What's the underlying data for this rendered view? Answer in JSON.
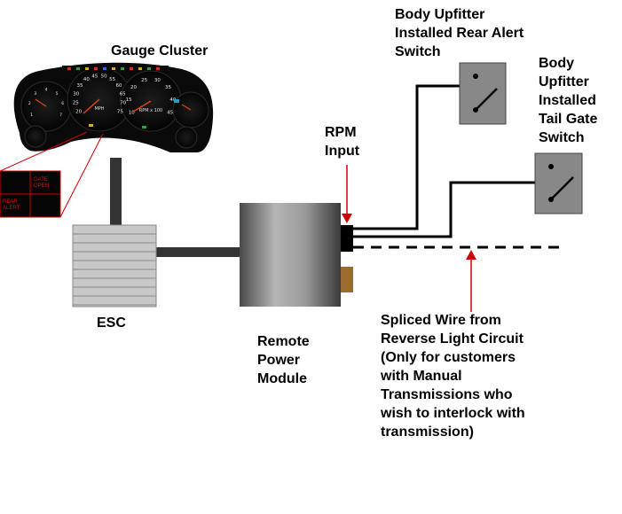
{
  "labels": {
    "gauge_cluster": "Gauge Cluster",
    "rear_alert_switch": "Body Upfitter\nInstalled Rear Alert\nSwitch",
    "tail_gate_switch": "Body\nUpfitter\nInstalled\nTail Gate\nSwitch",
    "rpm_input": "RPM\nInput",
    "esc": "ESC",
    "remote_power_module": "Remote\nPower\nModule",
    "spliced_wire": "Spliced Wire from\nReverse Light Circuit\n(Only for customers\nwith Manual\nTransmissions who\nwish to interlock with\ntransmission)"
  },
  "indicator": {
    "gate_open": [
      "GATE",
      "OPEN"
    ],
    "rear_alert": [
      "REAR",
      "ALERT"
    ]
  },
  "gauge_faces": {
    "speedometer": [
      "20",
      "25",
      "30",
      "35",
      "40",
      "45",
      "50",
      "55",
      "60",
      "65",
      "70",
      "75"
    ],
    "tachometer": [
      "10",
      "15",
      "20",
      "25",
      "30",
      "35",
      "40",
      "45"
    ],
    "left_gauge": [
      "1",
      "2",
      "3",
      "4",
      "5",
      "6",
      "7"
    ],
    "speed_unit": "MPH",
    "tach_unit": "RPM x 100"
  },
  "colors": {
    "indicator_text": "#e01010",
    "callout_line": "#d00000",
    "cluster": "#0a0a0a",
    "module_light": "#a8a8a8",
    "module_dark": "#3a3a3a",
    "switch_body": "#888888",
    "connector_brown": "#9a6a30"
  }
}
